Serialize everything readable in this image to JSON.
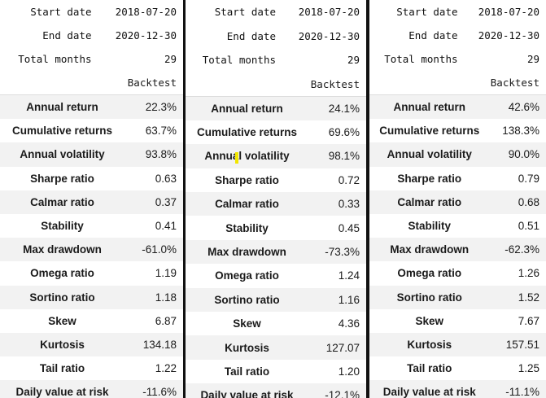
{
  "panels": [
    {
      "header": [
        {
          "key": "Start date",
          "value": "2018-07-20"
        },
        {
          "key": "End date",
          "value": "2020-12-30"
        },
        {
          "key": "Total months",
          "value": "29"
        }
      ],
      "column_label": "Backtest",
      "metrics": [
        {
          "name": "Annual return",
          "value": "22.3%"
        },
        {
          "name": "Cumulative returns",
          "value": "63.7%"
        },
        {
          "name": "Annual volatility",
          "value": "93.8%"
        },
        {
          "name": "Sharpe ratio",
          "value": "0.63"
        },
        {
          "name": "Calmar ratio",
          "value": "0.37"
        },
        {
          "name": "Stability",
          "value": "0.41"
        },
        {
          "name": "Max drawdown",
          "value": "-61.0%"
        },
        {
          "name": "Omega ratio",
          "value": "1.19"
        },
        {
          "name": "Sortino ratio",
          "value": "1.18"
        },
        {
          "name": "Skew",
          "value": "6.87"
        },
        {
          "name": "Kurtosis",
          "value": "134.18"
        },
        {
          "name": "Tail ratio",
          "value": "1.22"
        },
        {
          "name": "Daily value at risk",
          "value": "-11.6%"
        }
      ]
    },
    {
      "header": [
        {
          "key": "Start date",
          "value": "2018-07-20"
        },
        {
          "key": "End date",
          "value": "2020-12-30"
        },
        {
          "key": "Total months",
          "value": "29"
        }
      ],
      "column_label": "Backtest",
      "metrics": [
        {
          "name": "Annual return",
          "value": "24.1%"
        },
        {
          "name": "Cumulative returns",
          "value": "69.6%"
        },
        {
          "name": "Annual volatility",
          "value": "98.1%"
        },
        {
          "name": "Sharpe ratio",
          "value": "0.72"
        },
        {
          "name": "Calmar ratio",
          "value": "0.33"
        },
        {
          "name": "Stability",
          "value": "0.45"
        },
        {
          "name": "Max drawdown",
          "value": "-73.3%"
        },
        {
          "name": "Omega ratio",
          "value": "1.24"
        },
        {
          "name": "Sortino ratio",
          "value": "1.16"
        },
        {
          "name": "Skew",
          "value": "4.36"
        },
        {
          "name": "Kurtosis",
          "value": "127.07"
        },
        {
          "name": "Tail ratio",
          "value": "1.20"
        },
        {
          "name": "Daily value at risk",
          "value": "-12.1%"
        }
      ]
    },
    {
      "header": [
        {
          "key": "Start date",
          "value": "2018-07-20"
        },
        {
          "key": "End date",
          "value": "2020-12-30"
        },
        {
          "key": "Total months",
          "value": "29"
        }
      ],
      "column_label": "Backtest",
      "metrics": [
        {
          "name": "Annual return",
          "value": "42.6%"
        },
        {
          "name": "Cumulative returns",
          "value": "138.3%"
        },
        {
          "name": "Annual volatility",
          "value": "90.0%"
        },
        {
          "name": "Sharpe ratio",
          "value": "0.79"
        },
        {
          "name": "Calmar ratio",
          "value": "0.68"
        },
        {
          "name": "Stability",
          "value": "0.51"
        },
        {
          "name": "Max drawdown",
          "value": "-62.3%"
        },
        {
          "name": "Omega ratio",
          "value": "1.26"
        },
        {
          "name": "Sortino ratio",
          "value": "1.52"
        },
        {
          "name": "Skew",
          "value": "7.67"
        },
        {
          "name": "Kurtosis",
          "value": "157.51"
        },
        {
          "name": "Tail ratio",
          "value": "1.25"
        },
        {
          "name": "Daily value at risk",
          "value": "-11.1%"
        }
      ]
    }
  ],
  "colors": {
    "stripe": "#f2f2f2",
    "separator": "#111111",
    "cursor_highlight": "#f2e600"
  }
}
